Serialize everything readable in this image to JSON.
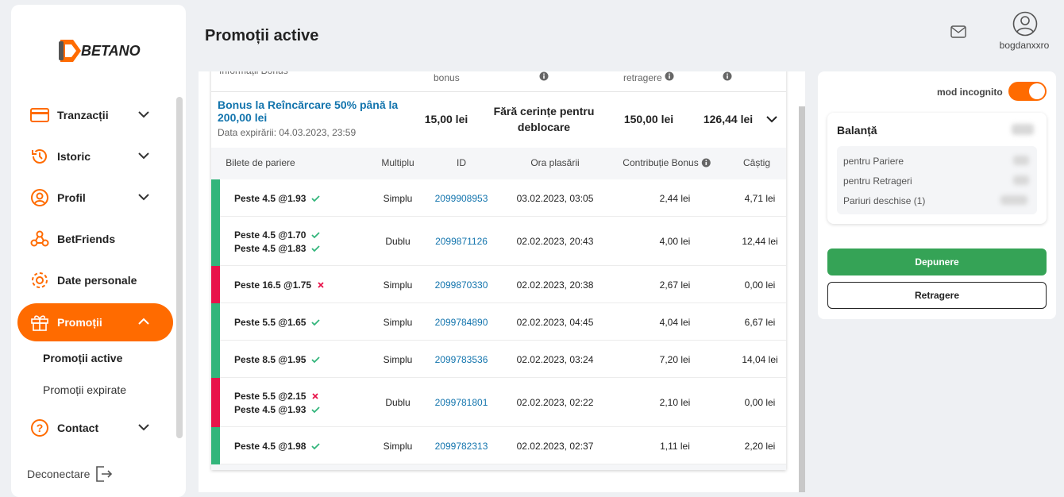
{
  "header": {
    "title": "Promoții active",
    "username": "bogdanxxro"
  },
  "sidebar": {
    "logo": "BETANO",
    "menu": [
      "Tranzacții",
      "Istoric",
      "Profil",
      "BetFriends",
      "Date personale",
      "Promoții"
    ],
    "submenu": [
      "Promoții active",
      "Promoții expirate"
    ],
    "contact": "Contact",
    "logout": "Deconectare"
  },
  "bonus_table": {
    "columns": [
      "Informații Bonus",
      "bonus",
      "retragere"
    ],
    "bonus": {
      "name": "Bonus la Reîncărcare 50% până la 200,00 lei",
      "expiry": "Data expirării: 04.03.2023, 23:59",
      "amount": "15,00 lei",
      "requirement": "Fără cerințe pentru deblocare",
      "withdraw": "150,00 lei",
      "remaining": "126,44 lei"
    }
  },
  "tickets": {
    "columns": [
      "Bilete de pariere",
      "Multiplu",
      "ID",
      "Ora plasării",
      "Contribuție Bonus",
      "Câștig"
    ],
    "rows": [
      {
        "selections": [
          {
            "text": "Peste 4.5 @1.93",
            "won": true
          }
        ],
        "type": "Simplu",
        "id": "2099908953",
        "placed": "03.02.2023, 03:05",
        "contribution": "2,44 lei",
        "win": "4,71 lei"
      },
      {
        "selections": [
          {
            "text": "Peste 4.5 @1.70",
            "won": true
          },
          {
            "text": "Peste 4.5 @1.83",
            "won": true
          }
        ],
        "type": "Dublu",
        "id": "2099871126",
        "placed": "02.02.2023, 20:43",
        "contribution": "4,00 lei",
        "win": "12,44 lei"
      },
      {
        "selections": [
          {
            "text": "Peste 16.5 @1.75",
            "won": false
          }
        ],
        "type": "Simplu",
        "id": "2099870330",
        "placed": "02.02.2023, 20:38",
        "contribution": "2,67 lei",
        "win": "0,00 lei"
      },
      {
        "selections": [
          {
            "text": "Peste 5.5 @1.65",
            "won": true
          }
        ],
        "type": "Simplu",
        "id": "2099784890",
        "placed": "02.02.2023, 04:45",
        "contribution": "4,04 lei",
        "win": "6,67 lei"
      },
      {
        "selections": [
          {
            "text": "Peste 8.5 @1.95",
            "won": true
          }
        ],
        "type": "Simplu",
        "id": "2099783536",
        "placed": "02.02.2023, 03:24",
        "contribution": "7,20 lei",
        "win": "14,04 lei"
      },
      {
        "selections": [
          {
            "text": "Peste 5.5 @2.15",
            "won": false
          },
          {
            "text": "Peste 4.5 @1.93",
            "won": true
          }
        ],
        "type": "Dublu",
        "id": "2099781801",
        "placed": "02.02.2023, 02:22",
        "contribution": "2,10 lei",
        "win": "0,00 lei"
      },
      {
        "selections": [
          {
            "text": "Peste 4.5 @1.98",
            "won": true
          }
        ],
        "type": "Simplu",
        "id": "2099782313",
        "placed": "02.02.2023, 02:37",
        "contribution": "1,11 lei",
        "win": "2,20 lei"
      }
    ]
  },
  "side": {
    "incognito": "mod incognito",
    "balance": "Balanță",
    "items": [
      "pentru Pariere",
      "pentru Retrageri",
      "Pariuri deschise (1)"
    ],
    "deposit": "Depunere",
    "withdraw": "Retragere"
  }
}
